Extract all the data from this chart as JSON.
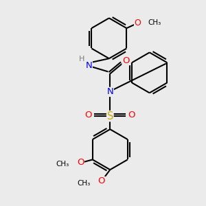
{
  "bg_color": "#ebebeb",
  "bond_color": "#000000",
  "N_color": "#0000ff",
  "O_color": "#ff0000",
  "S_color": "#ccaa00",
  "H_color": "#7a7a7a",
  "lw": 1.5,
  "figsize": [
    3.0,
    3.0
  ],
  "dpi": 100,
  "xlim": [
    -5,
    5
  ],
  "ylim": [
    -5,
    5
  ]
}
